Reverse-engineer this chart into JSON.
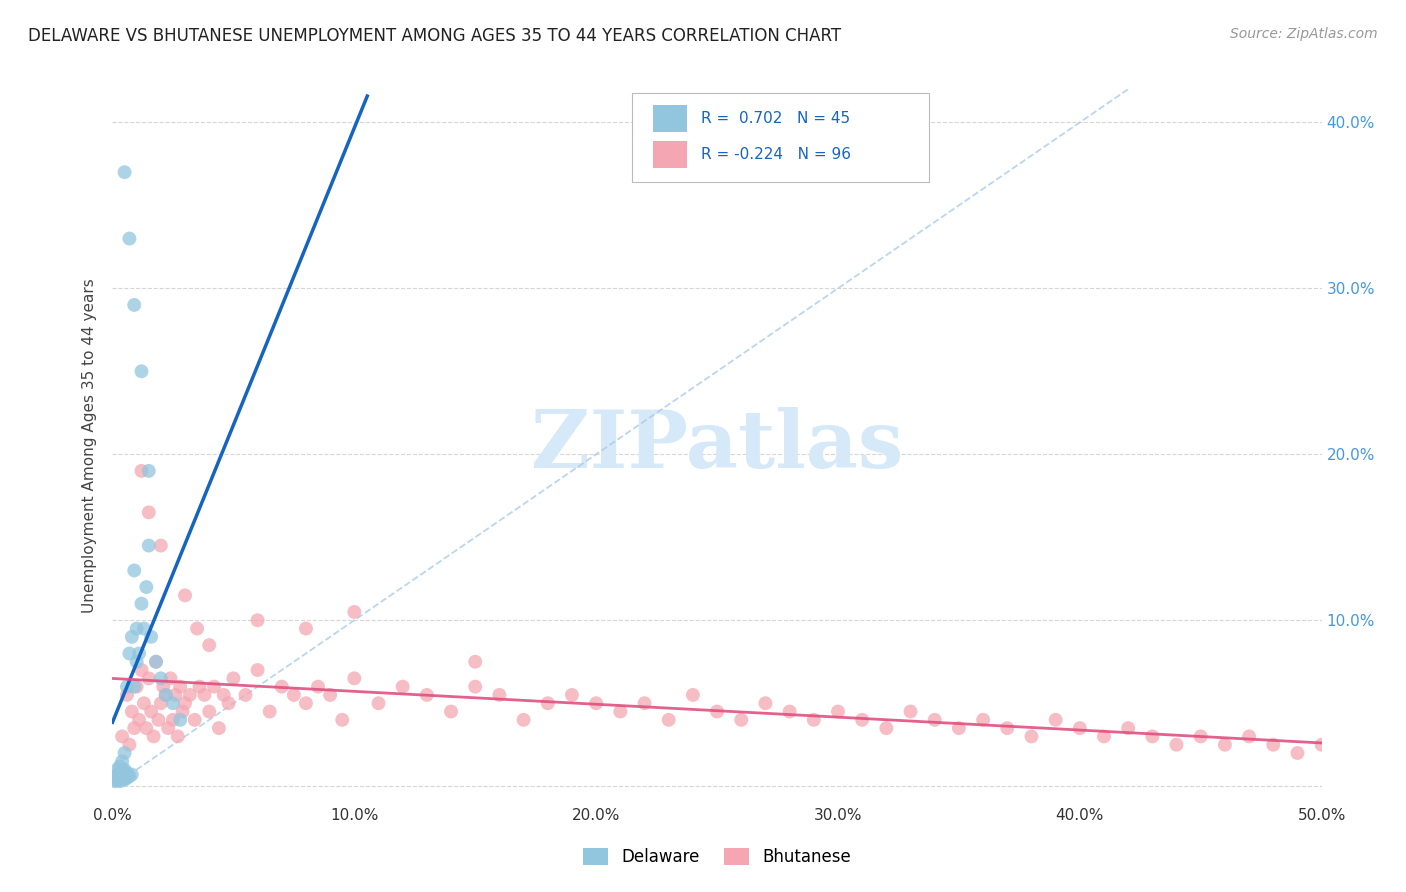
{
  "title": "DELAWARE VS BHUTANESE UNEMPLOYMENT AMONG AGES 35 TO 44 YEARS CORRELATION CHART",
  "source": "Source: ZipAtlas.com",
  "ylabel": "Unemployment Among Ages 35 to 44 years",
  "xlim": [
    0.0,
    0.5
  ],
  "ylim": [
    -0.01,
    0.42
  ],
  "xticks": [
    0.0,
    0.1,
    0.2,
    0.3,
    0.4,
    0.5
  ],
  "yticks": [
    0.0,
    0.1,
    0.2,
    0.3,
    0.4
  ],
  "xtick_labels": [
    "0.0%",
    "10.0%",
    "20.0%",
    "30.0%",
    "40.0%",
    "50.0%"
  ],
  "right_ytick_labels": [
    "",
    "10.0%",
    "20.0%",
    "30.0%",
    "40.0%"
  ],
  "delaware_color": "#92c5de",
  "bhutanese_color": "#f4a7b2",
  "delaware_line_color": "#1565c0",
  "bhutanese_line_color": "#e05080",
  "watermark_color": "#d6e9f8",
  "delaware_R": 0.702,
  "delaware_N": 45,
  "bhutanese_R": -0.224,
  "bhutanese_N": 96,
  "legend_text_color": "#1565c0",
  "delaware_x": [
    0.0,
    0.001,
    0.001,
    0.002,
    0.002,
    0.002,
    0.003,
    0.003,
    0.003,
    0.003,
    0.004,
    0.004,
    0.004,
    0.004,
    0.005,
    0.005,
    0.005,
    0.005,
    0.006,
    0.006,
    0.006,
    0.007,
    0.007,
    0.008,
    0.008,
    0.009,
    0.009,
    0.01,
    0.01,
    0.011,
    0.012,
    0.013,
    0.014,
    0.015,
    0.016,
    0.018,
    0.02,
    0.022,
    0.025,
    0.028,
    0.005,
    0.007,
    0.009,
    0.012,
    0.015
  ],
  "delaware_y": [
    0.005,
    0.003,
    0.006,
    0.004,
    0.007,
    0.01,
    0.003,
    0.005,
    0.008,
    0.012,
    0.004,
    0.006,
    0.009,
    0.015,
    0.004,
    0.007,
    0.01,
    0.02,
    0.005,
    0.008,
    0.06,
    0.006,
    0.08,
    0.007,
    0.09,
    0.06,
    0.13,
    0.075,
    0.095,
    0.08,
    0.11,
    0.095,
    0.12,
    0.145,
    0.09,
    0.075,
    0.065,
    0.055,
    0.05,
    0.04,
    0.37,
    0.33,
    0.29,
    0.25,
    0.19
  ],
  "bhutanese_x": [
    0.004,
    0.006,
    0.007,
    0.008,
    0.009,
    0.01,
    0.011,
    0.012,
    0.013,
    0.014,
    0.015,
    0.016,
    0.017,
    0.018,
    0.019,
    0.02,
    0.021,
    0.022,
    0.023,
    0.024,
    0.025,
    0.026,
    0.027,
    0.028,
    0.029,
    0.03,
    0.032,
    0.034,
    0.036,
    0.038,
    0.04,
    0.042,
    0.044,
    0.046,
    0.048,
    0.05,
    0.055,
    0.06,
    0.065,
    0.07,
    0.075,
    0.08,
    0.085,
    0.09,
    0.095,
    0.1,
    0.11,
    0.12,
    0.13,
    0.14,
    0.15,
    0.16,
    0.17,
    0.18,
    0.19,
    0.2,
    0.21,
    0.22,
    0.23,
    0.24,
    0.25,
    0.26,
    0.27,
    0.28,
    0.29,
    0.3,
    0.31,
    0.32,
    0.33,
    0.34,
    0.35,
    0.36,
    0.37,
    0.38,
    0.39,
    0.4,
    0.41,
    0.42,
    0.43,
    0.44,
    0.45,
    0.46,
    0.47,
    0.48,
    0.49,
    0.5,
    0.012,
    0.015,
    0.02,
    0.03,
    0.035,
    0.04,
    0.06,
    0.08,
    0.1,
    0.15
  ],
  "bhutanese_y": [
    0.03,
    0.055,
    0.025,
    0.045,
    0.035,
    0.06,
    0.04,
    0.07,
    0.05,
    0.035,
    0.065,
    0.045,
    0.03,
    0.075,
    0.04,
    0.05,
    0.06,
    0.055,
    0.035,
    0.065,
    0.04,
    0.055,
    0.03,
    0.06,
    0.045,
    0.05,
    0.055,
    0.04,
    0.06,
    0.055,
    0.045,
    0.06,
    0.035,
    0.055,
    0.05,
    0.065,
    0.055,
    0.07,
    0.045,
    0.06,
    0.055,
    0.05,
    0.06,
    0.055,
    0.04,
    0.065,
    0.05,
    0.06,
    0.055,
    0.045,
    0.06,
    0.055,
    0.04,
    0.05,
    0.055,
    0.05,
    0.045,
    0.05,
    0.04,
    0.055,
    0.045,
    0.04,
    0.05,
    0.045,
    0.04,
    0.045,
    0.04,
    0.035,
    0.045,
    0.04,
    0.035,
    0.04,
    0.035,
    0.03,
    0.04,
    0.035,
    0.03,
    0.035,
    0.03,
    0.025,
    0.03,
    0.025,
    0.03,
    0.025,
    0.02,
    0.025,
    0.19,
    0.165,
    0.145,
    0.115,
    0.095,
    0.085,
    0.1,
    0.095,
    0.105,
    0.075
  ]
}
